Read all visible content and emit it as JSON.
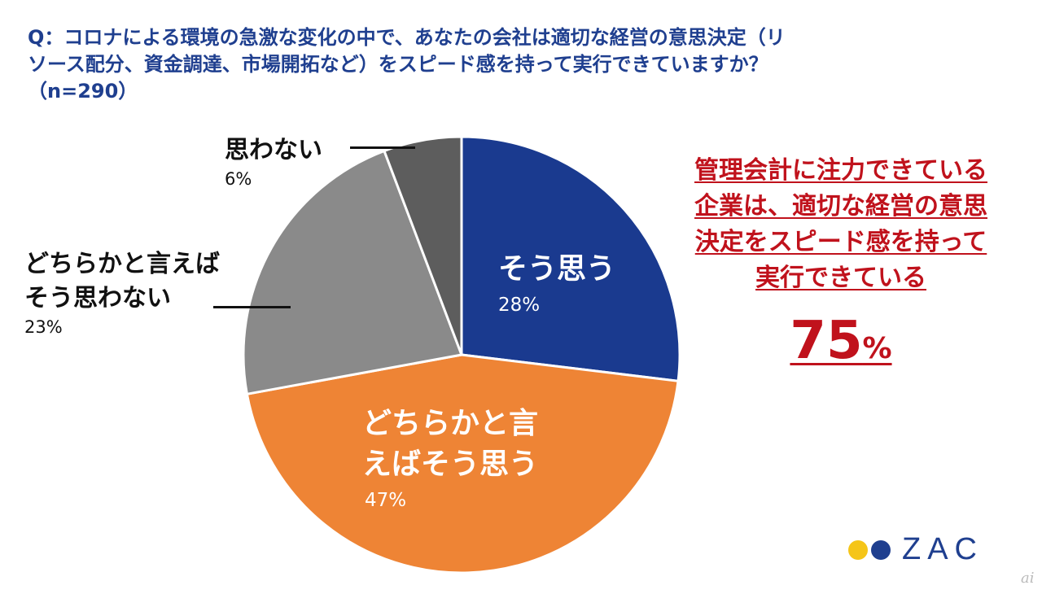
{
  "question": {
    "line1": "Q：コロナによる環境の急激な変化の中で、あなたの会社は適切な経営の意思決定（リ",
    "line2": "ソース配分、資金調達、市場開拓など）をスピード感を持って実行できていますか？",
    "line3": "（n=290）"
  },
  "chart_data": {
    "type": "pie",
    "title": "Q：コロナによる環境の急激な変化の中で、あなたの会社は適切な経営の意思決定（リソース配分、資金調達、市場開拓など）をスピード感を持って実行できていますか？（n=290）",
    "slices": [
      {
        "label_lines": [
          "そう思う"
        ],
        "value": 28,
        "value_label": "28%",
        "color": "#1a3a8f",
        "label_placement": "inside",
        "text_color": "#ffffff"
      },
      {
        "label_lines": [
          "どちらかと言",
          "えばそう思う"
        ],
        "value": 47,
        "value_label": "47%",
        "color": "#ee8435",
        "label_placement": "inside",
        "text_color": "#ffffff"
      },
      {
        "label_lines": [
          "どちらかと言えば",
          "そう思わない"
        ],
        "value": 23,
        "value_label": "23%",
        "color": "#8a8a8a",
        "label_placement": "outside",
        "text_color": "#111111"
      },
      {
        "label_lines": [
          "思わない"
        ],
        "value": 6,
        "value_label": "6%",
        "color": "#5d5d5d",
        "label_placement": "outside",
        "text_color": "#111111"
      }
    ],
    "start": "top",
    "direction": "clockwise"
  },
  "callout": {
    "lines": [
      "管理会計に注力できている",
      "企業は、適切な経営の意思",
      "決定をスピード感を持って",
      "実行できている"
    ],
    "value": "75",
    "unit": "%",
    "color": "#c0121c"
  },
  "logo": {
    "text": "ZAC",
    "yellow": "#f5c518",
    "blue": "#1f3f8f"
  },
  "watermark": "ai"
}
